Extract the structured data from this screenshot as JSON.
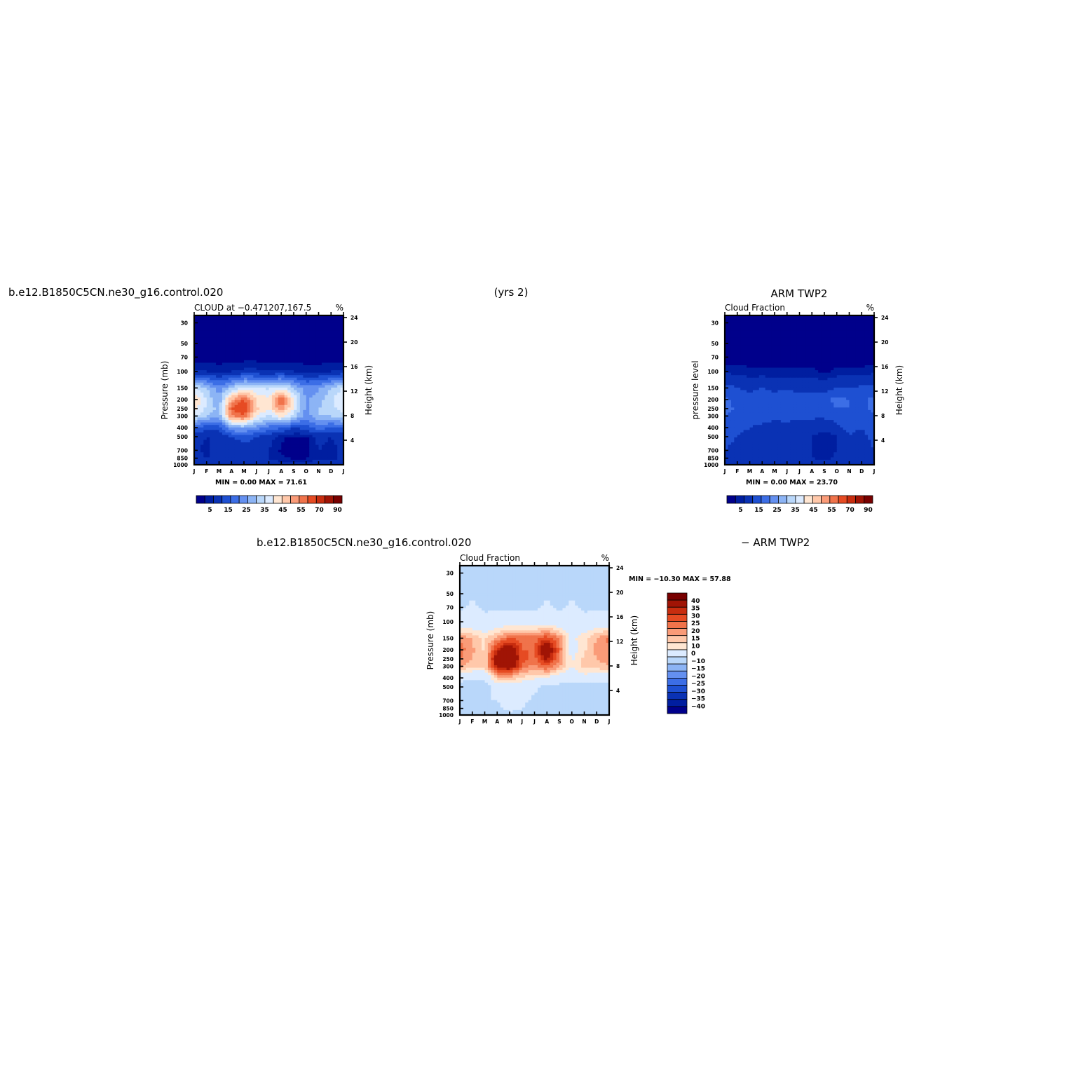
{
  "header": {
    "case_name": "b.e12.B1850C5CN.ne30_g16.control.020",
    "years": "(yrs 2)",
    "obs_name": "ARM TWP2",
    "diff_case": "b.e12.B1850C5CN.ne30_g16.control.020",
    "diff_obs": "− ARM TWP2"
  },
  "colors": {
    "abs_levels": [
      "#00008b",
      "#001ea0",
      "#0a32b4",
      "#1e50d2",
      "#3c6ee6",
      "#6490f0",
      "#8cb4f5",
      "#b9d7fa",
      "#dcebff",
      "#ffe6d2",
      "#ffc8aa",
      "#fa9b78",
      "#f0734b",
      "#e64b23",
      "#c82d0f",
      "#a01405",
      "#780000"
    ],
    "diff_levels": [
      "#00008b",
      "#001ea0",
      "#0a32b4",
      "#1e50d2",
      "#3c6ee6",
      "#6490f0",
      "#8cb4f5",
      "#b9d7fa",
      "#dcebff",
      "#ffe6d2",
      "#ffc8aa",
      "#fa9b78",
      "#f0734b",
      "#e64b23",
      "#c82d0f",
      "#a01405",
      "#780000"
    ]
  },
  "chart_data": [
    {
      "type": "heatmap",
      "id": "model",
      "title": "CLOUD at −0.471207,167.5",
      "units": "%",
      "ylabel": "Pressure (mb)",
      "ylabel_right": "Height (km)",
      "x_ticks": [
        "J",
        "F",
        "M",
        "A",
        "M",
        "J",
        "J",
        "A",
        "S",
        "O",
        "N",
        "D",
        "J"
      ],
      "y_ticks": [
        "30",
        "50",
        "70",
        "100",
        "150",
        "200",
        "250",
        "300",
        "400",
        "500",
        "700",
        "850",
        "1000"
      ],
      "y_right_ticks": [
        "24",
        "20",
        "16",
        "12",
        "8",
        "4"
      ],
      "min_max_label": "MIN =    0.00 MAX =   71.61",
      "colorbar_labels": [
        "5",
        "15",
        "25",
        "35",
        "45",
        "55",
        "70",
        "90"
      ],
      "grid": {
        "months": [
          "J",
          "F",
          "M",
          "A",
          "M",
          "J",
          "J",
          "A",
          "S",
          "O",
          "N",
          "D",
          "J"
        ],
        "pressure_levels": [
          30,
          50,
          70,
          100,
          150,
          200,
          250,
          300,
          400,
          500,
          700,
          850,
          1000
        ],
        "values": [
          [
            0,
            0,
            0,
            0,
            0,
            0,
            0,
            0,
            0,
            0,
            0,
            0,
            0
          ],
          [
            0,
            0,
            0,
            0,
            0,
            0,
            0,
            0,
            0,
            0,
            0,
            0,
            0
          ],
          [
            1,
            1,
            1,
            1,
            1,
            1,
            1,
            1,
            1,
            1,
            1,
            1,
            1
          ],
          [
            6,
            5,
            4,
            5,
            6,
            6,
            5,
            6,
            5,
            4,
            4,
            5,
            6
          ],
          [
            35,
            30,
            22,
            30,
            38,
            36,
            34,
            38,
            30,
            22,
            24,
            30,
            36
          ],
          [
            45,
            34,
            26,
            50,
            60,
            44,
            42,
            62,
            40,
            24,
            28,
            34,
            40
          ],
          [
            42,
            34,
            28,
            60,
            68,
            46,
            40,
            55,
            38,
            24,
            30,
            33,
            38
          ],
          [
            36,
            30,
            26,
            55,
            58,
            40,
            34,
            42,
            32,
            22,
            30,
            30,
            34
          ],
          [
            15,
            12,
            12,
            26,
            26,
            22,
            18,
            16,
            10,
            12,
            18,
            14,
            15
          ],
          [
            6,
            5,
            5,
            10,
            12,
            10,
            7,
            3,
            2,
            2,
            6,
            5,
            6
          ],
          [
            6,
            4,
            8,
            6,
            8,
            7,
            5,
            2,
            1,
            2,
            5,
            4,
            6
          ],
          [
            6,
            5,
            6,
            5,
            7,
            6,
            5,
            3,
            2,
            2,
            5,
            4,
            6
          ],
          [
            7,
            7,
            7,
            7,
            7,
            7,
            7,
            7,
            7,
            7,
            7,
            7,
            7
          ]
        ]
      }
    },
    {
      "type": "heatmap",
      "id": "obs",
      "title": "Cloud Fraction",
      "units": "%",
      "ylabel": "pressure level",
      "ylabel_right": "Height (km)",
      "x_ticks": [
        "J",
        "F",
        "M",
        "A",
        "M",
        "J",
        "J",
        "A",
        "S",
        "O",
        "N",
        "D",
        "J"
      ],
      "y_ticks": [
        "30",
        "50",
        "70",
        "100",
        "150",
        "200",
        "250",
        "300",
        "400",
        "500",
        "700",
        "850",
        "1000"
      ],
      "y_right_ticks": [
        "24",
        "20",
        "16",
        "12",
        "8",
        "4"
      ],
      "min_max_label": "MIN =    0.00 MAX =   23.70",
      "colorbar_labels": [
        "5",
        "15",
        "25",
        "35",
        "45",
        "55",
        "70",
        "90"
      ],
      "grid": {
        "months": [
          "J",
          "F",
          "M",
          "A",
          "M",
          "J",
          "J",
          "A",
          "S",
          "O",
          "N",
          "D",
          "J"
        ],
        "pressure_levels": [
          30,
          50,
          70,
          100,
          150,
          200,
          250,
          300,
          400,
          500,
          700,
          850,
          1000
        ],
        "values": [
          [
            0,
            0,
            0,
            0,
            0,
            0,
            0,
            0,
            0,
            0,
            0,
            0,
            0
          ],
          [
            0,
            0,
            0,
            0,
            0,
            0,
            0,
            0,
            0,
            0,
            0,
            0,
            0
          ],
          [
            1,
            1,
            1,
            1,
            1,
            1,
            1,
            1,
            1,
            1,
            1,
            1,
            1
          ],
          [
            4,
            4,
            3,
            3,
            3,
            3,
            3,
            3,
            2,
            3,
            3,
            3,
            4
          ],
          [
            12,
            10,
            9,
            10,
            9,
            9,
            8,
            8,
            8,
            10,
            10,
            11,
            12
          ],
          [
            16,
            13,
            12,
            13,
            11,
            15,
            12,
            12,
            13,
            17,
            15,
            14,
            16
          ],
          [
            17,
            14,
            12,
            13,
            11,
            15,
            12,
            13,
            13,
            15,
            15,
            14,
            16
          ],
          [
            15,
            13,
            11,
            12,
            11,
            12,
            11,
            11,
            11,
            12,
            13,
            12,
            14
          ],
          [
            12,
            11,
            10,
            9,
            8,
            8,
            7,
            7,
            6,
            9,
            11,
            10,
            12
          ],
          [
            11,
            10,
            9,
            7,
            6,
            6,
            6,
            5,
            3,
            5,
            10,
            9,
            11
          ],
          [
            10,
            9,
            8,
            6,
            5,
            6,
            6,
            5,
            3,
            5,
            9,
            8,
            10
          ],
          [
            9,
            8,
            7,
            6,
            6,
            6,
            6,
            5,
            4,
            6,
            8,
            8,
            9
          ],
          [
            8,
            8,
            8,
            8,
            8,
            8,
            8,
            8,
            8,
            8,
            8,
            8,
            8
          ]
        ]
      }
    },
    {
      "type": "heatmap",
      "id": "diff",
      "title": "Cloud Fraction",
      "units": "%",
      "ylabel": "Pressure (mb)",
      "ylabel_right": "Height (km)",
      "x_ticks": [
        "J",
        "F",
        "M",
        "A",
        "M",
        "J",
        "J",
        "A",
        "S",
        "O",
        "N",
        "D",
        "J"
      ],
      "y_ticks": [
        "30",
        "50",
        "70",
        "100",
        "150",
        "200",
        "250",
        "300",
        "400",
        "500",
        "700",
        "850",
        "1000"
      ],
      "y_right_ticks": [
        "24",
        "20",
        "16",
        "12",
        "8",
        "4"
      ],
      "min_max_label": "MIN =  −10.30 MAX =   57.88",
      "colorbar_labels": [
        "40",
        "35",
        "30",
        "25",
        "20",
        "15",
        "10",
        "0",
        "−10",
        "−15",
        "−20",
        "−25",
        "−30",
        "−35",
        "−40"
      ],
      "grid": {
        "months": [
          "J",
          "F",
          "M",
          "A",
          "M",
          "J",
          "J",
          "A",
          "S",
          "O",
          "N",
          "D",
          "J"
        ],
        "pressure_levels": [
          30,
          50,
          70,
          100,
          150,
          200,
          250,
          300,
          400,
          500,
          700,
          850,
          1000
        ],
        "values": [
          [
            -1,
            -1,
            -1,
            -1,
            -1,
            -1,
            -1,
            -1,
            -1,
            -1,
            -1,
            -1,
            -1
          ],
          [
            -1,
            -1,
            -1,
            -1,
            -1,
            -1,
            -1,
            -1,
            -1,
            -1,
            -1,
            -1,
            -1
          ],
          [
            -1,
            1,
            -1,
            -1,
            -1,
            -1,
            -1,
            1,
            -1,
            1,
            -1,
            -1,
            -1
          ],
          [
            2,
            2,
            2,
            3,
            3,
            3,
            3,
            4,
            3,
            2,
            2,
            3,
            3
          ],
          [
            24,
            20,
            14,
            22,
            30,
            28,
            28,
            34,
            24,
            8,
            14,
            20,
            26
          ],
          [
            28,
            21,
            14,
            38,
            50,
            30,
            30,
            52,
            28,
            6,
            14,
            22,
            25
          ],
          [
            25,
            20,
            16,
            47,
            56,
            32,
            28,
            42,
            25,
            9,
            16,
            20,
            22
          ],
          [
            21,
            17,
            15,
            43,
            48,
            28,
            23,
            31,
            21,
            10,
            17,
            18,
            20
          ],
          [
            3,
            1,
            2,
            17,
            18,
            14,
            11,
            9,
            4,
            3,
            7,
            4,
            3
          ],
          [
            -4,
            -5,
            -4,
            3,
            6,
            4,
            1,
            -2,
            -2,
            -3,
            -4,
            -4,
            -5
          ],
          [
            -4,
            -5,
            0,
            0,
            3,
            1,
            -1,
            -3,
            -2,
            -3,
            -4,
            -4,
            -4
          ],
          [
            -3,
            -3,
            -1,
            -1,
            1,
            0,
            -1,
            -2,
            -2,
            -4,
            -3,
            -4,
            -3
          ],
          [
            -1,
            -1,
            -1,
            -1,
            -1,
            -1,
            -1,
            -1,
            -1,
            -1,
            -1,
            -1,
            -1
          ]
        ]
      }
    }
  ]
}
